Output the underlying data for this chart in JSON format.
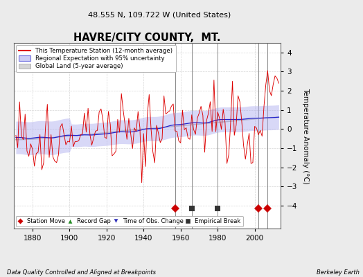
{
  "title": "HAVRE/CITY COUNTY,  MT.",
  "subtitle": "48.555 N, 109.722 W (United States)",
  "xlabel_note": "Data Quality Controlled and Aligned at Breakpoints",
  "xlabel_right": "Berkeley Earth",
  "ylabel": "Temperature Anomaly (°C)",
  "xlim": [
    1870,
    2014
  ],
  "ylim": [
    -5.2,
    4.5
  ],
  "yticks": [
    -4,
    -3,
    -2,
    -1,
    0,
    1,
    2,
    3,
    4
  ],
  "xticks": [
    1880,
    1900,
    1920,
    1940,
    1960,
    1980,
    2000
  ],
  "grid_color": "#cccccc",
  "background_color": "#ebebeb",
  "plot_bg_color": "#ffffff",
  "station_move_years": [
    1957,
    2002,
    2007
  ],
  "station_move_y": -4.15,
  "empirical_break_years": [
    1966,
    1980
  ],
  "empirical_break_y": -4.15,
  "station_move_color": "#cc0000",
  "empirical_break_color": "#333333",
  "red_line_color": "#dd0000",
  "blue_line_color": "#2222cc",
  "blue_band_color": "#aaaaee",
  "gray_line_color": "#aaaaaa",
  "vline_color": "#888888",
  "vline_years": [
    1957,
    1966,
    1980,
    2002,
    2007
  ]
}
